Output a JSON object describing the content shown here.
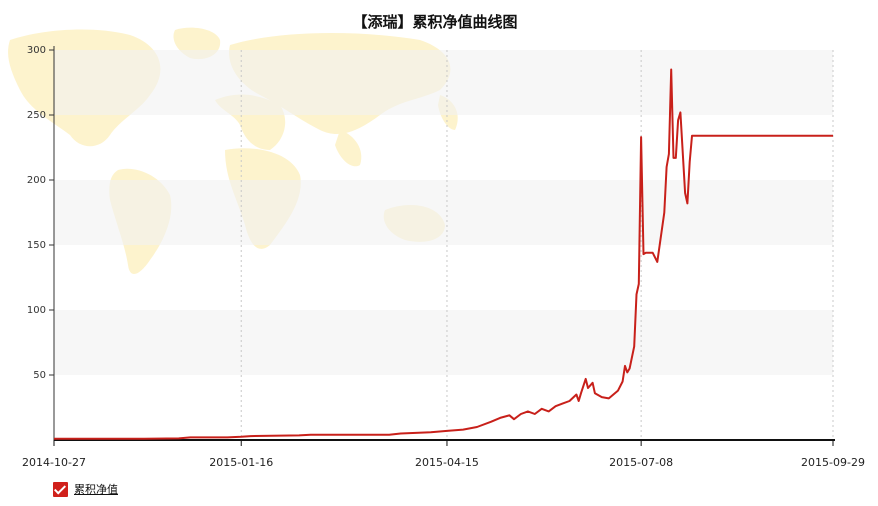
{
  "chart_data": {
    "type": "line",
    "title": "【添瑞】累积净值曲线图",
    "xlabel": "",
    "ylabel": "",
    "ylim": [
      0,
      300
    ],
    "yticks": [
      50,
      100,
      150,
      200,
      250,
      300
    ],
    "xlim": [
      "2014-10-27",
      "2015-09-29"
    ],
    "xticks": [
      "2014-10-27",
      "2015-01-16",
      "2015-04-15",
      "2015-07-08",
      "2015-09-29"
    ],
    "grid": "alternating horizontal bands, dotted vertical lines at x ticks",
    "legend_position": "bottom-left",
    "colors": {
      "line": "#c8201a",
      "legend_box": "#d0201b"
    },
    "series": [
      {
        "name": "累积净值",
        "points": [
          [
            "2014-10-27",
            1
          ],
          [
            "2014-11-15",
            1
          ],
          [
            "2014-12-05",
            1
          ],
          [
            "2014-12-20",
            1.2
          ],
          [
            "2014-12-25",
            2
          ],
          [
            "2015-01-10",
            2
          ],
          [
            "2015-01-16",
            2.5
          ],
          [
            "2015-01-20",
            3
          ],
          [
            "2015-02-10",
            3.5
          ],
          [
            "2015-02-15",
            4
          ],
          [
            "2015-03-01",
            4
          ],
          [
            "2015-03-21",
            4
          ],
          [
            "2015-03-26",
            5
          ],
          [
            "2015-04-08",
            6
          ],
          [
            "2015-04-15",
            7
          ],
          [
            "2015-04-22",
            8
          ],
          [
            "2015-04-28",
            10
          ],
          [
            "2015-05-04",
            14
          ],
          [
            "2015-05-08",
            17
          ],
          [
            "2015-05-12",
            19
          ],
          [
            "2015-05-14",
            16
          ],
          [
            "2015-05-17",
            20
          ],
          [
            "2015-05-20",
            22
          ],
          [
            "2015-05-23",
            20
          ],
          [
            "2015-05-26",
            24
          ],
          [
            "2015-05-29",
            22
          ],
          [
            "2015-06-01",
            26
          ],
          [
            "2015-06-04",
            28
          ],
          [
            "2015-06-07",
            30
          ],
          [
            "2015-06-10",
            35
          ],
          [
            "2015-06-11",
            30
          ],
          [
            "2015-06-12",
            36
          ],
          [
            "2015-06-14",
            47
          ],
          [
            "2015-06-15",
            40
          ],
          [
            "2015-06-17",
            44
          ],
          [
            "2015-06-18",
            36
          ],
          [
            "2015-06-21",
            33
          ],
          [
            "2015-06-24",
            32
          ],
          [
            "2015-06-26",
            35
          ],
          [
            "2015-06-28",
            38
          ],
          [
            "2015-06-30",
            45
          ],
          [
            "2015-07-01",
            57
          ],
          [
            "2015-07-02",
            52
          ],
          [
            "2015-07-03",
            55
          ],
          [
            "2015-07-05",
            72
          ],
          [
            "2015-07-06",
            112
          ],
          [
            "2015-07-07",
            120
          ],
          [
            "2015-07-08",
            233
          ],
          [
            "2015-07-09",
            143
          ],
          [
            "2015-07-10",
            144
          ],
          [
            "2015-07-13",
            144
          ],
          [
            "2015-07-15",
            137
          ],
          [
            "2015-07-18",
            175
          ],
          [
            "2015-07-19",
            210
          ],
          [
            "2015-07-20",
            220
          ],
          [
            "2015-07-21",
            285
          ],
          [
            "2015-07-22",
            217
          ],
          [
            "2015-07-23",
            217
          ],
          [
            "2015-07-24",
            246
          ],
          [
            "2015-07-25",
            252
          ],
          [
            "2015-07-27",
            190
          ],
          [
            "2015-07-28",
            182
          ],
          [
            "2015-07-29",
            214
          ],
          [
            "2015-07-30",
            234
          ],
          [
            "2015-09-29",
            234
          ]
        ]
      }
    ]
  }
}
